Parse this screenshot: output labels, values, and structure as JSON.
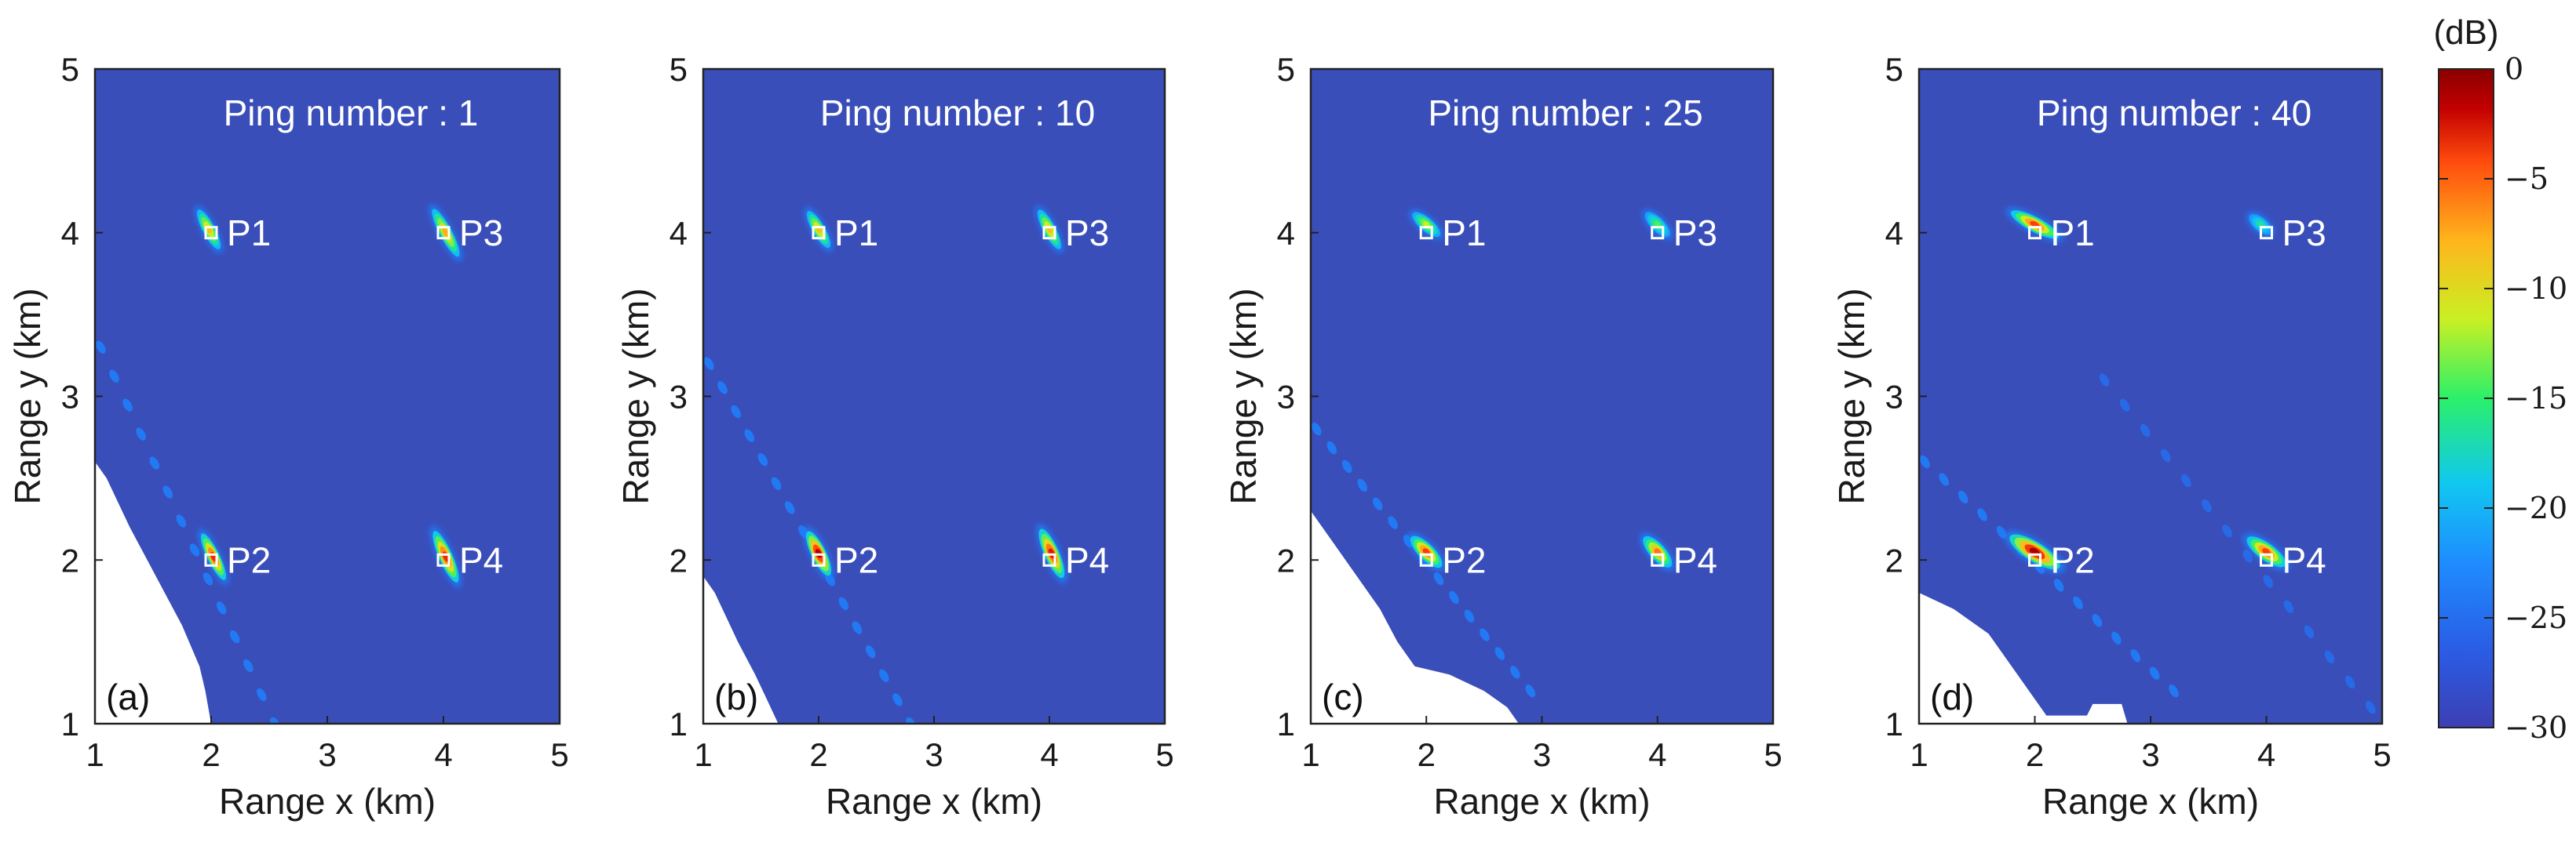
{
  "colors": {
    "background_level": "#3a4eba",
    "colormap": [
      "#3d3fb4",
      "#1f7cff",
      "#10c7f0",
      "#2bf06a",
      "#c9f023",
      "#ffb51c",
      "#ff4a0e",
      "#c20000",
      "#8a0000"
    ]
  },
  "colorbar": {
    "unit": "(dB)",
    "range": [
      -30,
      0
    ],
    "ticks": [
      "0",
      "−5",
      "−10",
      "−15",
      "−20",
      "−25",
      "−30"
    ]
  },
  "chart_data": [
    {
      "type": "heatmap",
      "panel": "(a)",
      "title": "Ping number : 1",
      "xlabel": "Range x (km)",
      "ylabel": "Range y (km)",
      "xlim": [
        1,
        5
      ],
      "ylim": [
        1,
        5
      ],
      "xticks": [
        "1",
        "2",
        "3",
        "4",
        "5"
      ],
      "yticks": [
        "1",
        "2",
        "3",
        "4",
        "5"
      ],
      "targets": [
        {
          "name": "P1",
          "x": 2,
          "y": 4,
          "blob": {
            "cx": 1.98,
            "cy": 4.02,
            "len": 0.38,
            "wid": 0.08,
            "angle": -62,
            "peak_db": -12
          }
        },
        {
          "name": "P3",
          "x": 4,
          "y": 4,
          "blob": {
            "cx": 4.02,
            "cy": 4.0,
            "len": 0.46,
            "wid": 0.08,
            "angle": -62,
            "peak_db": -11
          }
        },
        {
          "name": "P2",
          "x": 2,
          "y": 2,
          "blob": {
            "cx": 2.02,
            "cy": 2.02,
            "len": 0.44,
            "wid": 0.08,
            "angle": -64,
            "peak_db": -6
          }
        },
        {
          "name": "P4",
          "x": 4,
          "y": 2,
          "blob": {
            "cx": 4.02,
            "cy": 2.02,
            "len": 0.48,
            "wid": 0.09,
            "angle": -66,
            "peak_db": -6
          }
        }
      ],
      "streak": {
        "from": [
          1.05,
          3.3
        ],
        "to": [
          2.55,
          1.0
        ],
        "n": 14,
        "db": -26
      },
      "blank_region": [
        [
          1,
          1
        ],
        [
          1,
          2.6
        ],
        [
          1.1,
          2.5
        ],
        [
          1.2,
          2.35
        ],
        [
          1.3,
          2.2
        ],
        [
          1.45,
          2.0
        ],
        [
          1.6,
          1.8
        ],
        [
          1.75,
          1.6
        ],
        [
          1.9,
          1.35
        ],
        [
          1.95,
          1.2
        ],
        [
          2.0,
          1.0
        ]
      ]
    },
    {
      "type": "heatmap",
      "panel": "(b)",
      "title": "Ping number : 10",
      "xlabel": "Range x (km)",
      "ylabel": "Range y (km)",
      "xlim": [
        1,
        5
      ],
      "ylim": [
        1,
        5
      ],
      "xticks": [
        "1",
        "2",
        "3",
        "4",
        "5"
      ],
      "yticks": [
        "1",
        "2",
        "3",
        "4",
        "5"
      ],
      "targets": [
        {
          "name": "P1",
          "x": 2,
          "y": 4,
          "blob": {
            "cx": 2.0,
            "cy": 4.02,
            "len": 0.36,
            "wid": 0.08,
            "angle": -60,
            "peak_db": -12
          }
        },
        {
          "name": "P3",
          "x": 4,
          "y": 4,
          "blob": {
            "cx": 4.0,
            "cy": 4.02,
            "len": 0.38,
            "wid": 0.08,
            "angle": -62,
            "peak_db": -12
          }
        },
        {
          "name": "P2",
          "x": 2,
          "y": 2,
          "blob": {
            "cx": 2.0,
            "cy": 2.04,
            "len": 0.42,
            "wid": 0.1,
            "angle": -64,
            "peak_db": -3
          }
        },
        {
          "name": "P4",
          "x": 4,
          "y": 2,
          "blob": {
            "cx": 4.02,
            "cy": 2.04,
            "len": 0.46,
            "wid": 0.1,
            "angle": -66,
            "peak_db": -5
          }
        }
      ],
      "streak": {
        "from": [
          1.05,
          3.2
        ],
        "to": [
          2.8,
          1.0
        ],
        "n": 16,
        "db": -26
      },
      "blank_region": [
        [
          1,
          1
        ],
        [
          1,
          1.9
        ],
        [
          1.1,
          1.8
        ],
        [
          1.2,
          1.65
        ],
        [
          1.3,
          1.5
        ],
        [
          1.45,
          1.3
        ],
        [
          1.55,
          1.15
        ],
        [
          1.65,
          1.0
        ]
      ]
    },
    {
      "type": "heatmap",
      "panel": "(c)",
      "title": "Ping number : 25",
      "xlabel": "Range x (km)",
      "ylabel": "Range y (km)",
      "xlim": [
        1,
        5
      ],
      "ylim": [
        1,
        5
      ],
      "xticks": [
        "1",
        "2",
        "3",
        "4",
        "5"
      ],
      "yticks": [
        "1",
        "2",
        "3",
        "4",
        "5"
      ],
      "targets": [
        {
          "name": "P1",
          "x": 2,
          "y": 4,
          "blob": {
            "cx": 2.0,
            "cy": 4.05,
            "len": 0.3,
            "wid": 0.09,
            "angle": -40,
            "peak_db": -15
          }
        },
        {
          "name": "P3",
          "x": 4,
          "y": 4,
          "blob": {
            "cx": 4.0,
            "cy": 4.05,
            "len": 0.28,
            "wid": 0.09,
            "angle": -45,
            "peak_db": -18
          }
        },
        {
          "name": "P2",
          "x": 2,
          "y": 2,
          "blob": {
            "cx": 2.0,
            "cy": 2.05,
            "len": 0.36,
            "wid": 0.11,
            "angle": -45,
            "peak_db": -7
          }
        },
        {
          "name": "P4",
          "x": 4,
          "y": 2,
          "blob": {
            "cx": 4.0,
            "cy": 2.05,
            "len": 0.34,
            "wid": 0.11,
            "angle": -48,
            "peak_db": -9
          }
        }
      ],
      "streak": {
        "from": [
          1.05,
          2.8
        ],
        "to": [
          2.9,
          1.2
        ],
        "n": 15,
        "db": -26
      },
      "blank_region": [
        [
          1,
          1
        ],
        [
          1,
          2.3
        ],
        [
          1.2,
          2.1
        ],
        [
          1.4,
          1.9
        ],
        [
          1.6,
          1.7
        ],
        [
          1.75,
          1.5
        ],
        [
          1.9,
          1.35
        ],
        [
          2.2,
          1.3
        ],
        [
          2.5,
          1.2
        ],
        [
          2.7,
          1.1
        ],
        [
          2.8,
          1.0
        ]
      ]
    },
    {
      "type": "heatmap",
      "panel": "(d)",
      "title": "Ping number : 40",
      "xlabel": "Range x (km)",
      "ylabel": "Range y (km)",
      "xlim": [
        1,
        5
      ],
      "ylim": [
        1,
        5
      ],
      "xticks": [
        "1",
        "2",
        "3",
        "4",
        "5"
      ],
      "yticks": [
        "1",
        "2",
        "3",
        "4",
        "5"
      ],
      "targets": [
        {
          "name": "P1",
          "x": 2,
          "y": 4,
          "blob": {
            "cx": 2.0,
            "cy": 4.05,
            "len": 0.46,
            "wid": 0.1,
            "angle": -28,
            "peak_db": -7
          }
        },
        {
          "name": "P3",
          "x": 4,
          "y": 4,
          "blob": {
            "cx": 3.95,
            "cy": 4.05,
            "len": 0.24,
            "wid": 0.09,
            "angle": -40,
            "peak_db": -20
          }
        },
        {
          "name": "P2",
          "x": 2,
          "y": 2,
          "blob": {
            "cx": 2.0,
            "cy": 2.05,
            "len": 0.5,
            "wid": 0.14,
            "angle": -32,
            "peak_db": -2
          }
        },
        {
          "name": "P4",
          "x": 4,
          "y": 2,
          "blob": {
            "cx": 4.0,
            "cy": 2.05,
            "len": 0.4,
            "wid": 0.12,
            "angle": -36,
            "peak_db": -7
          }
        }
      ],
      "streak": {
        "from": [
          1.05,
          2.6
        ],
        "to": [
          3.2,
          1.2
        ],
        "n": 14,
        "db": -26
      },
      "streak2": {
        "from": [
          2.6,
          3.1
        ],
        "to": [
          4.9,
          1.1
        ],
        "n": 14,
        "db": -27
      },
      "blank_region": [
        [
          1,
          1
        ],
        [
          1,
          1.8
        ],
        [
          1.3,
          1.7
        ],
        [
          1.6,
          1.55
        ],
        [
          1.85,
          1.3
        ],
        [
          2.1,
          1.05
        ],
        [
          2.45,
          1.05
        ],
        [
          2.5,
          1.12
        ],
        [
          2.75,
          1.12
        ],
        [
          2.8,
          1.0
        ]
      ]
    }
  ]
}
